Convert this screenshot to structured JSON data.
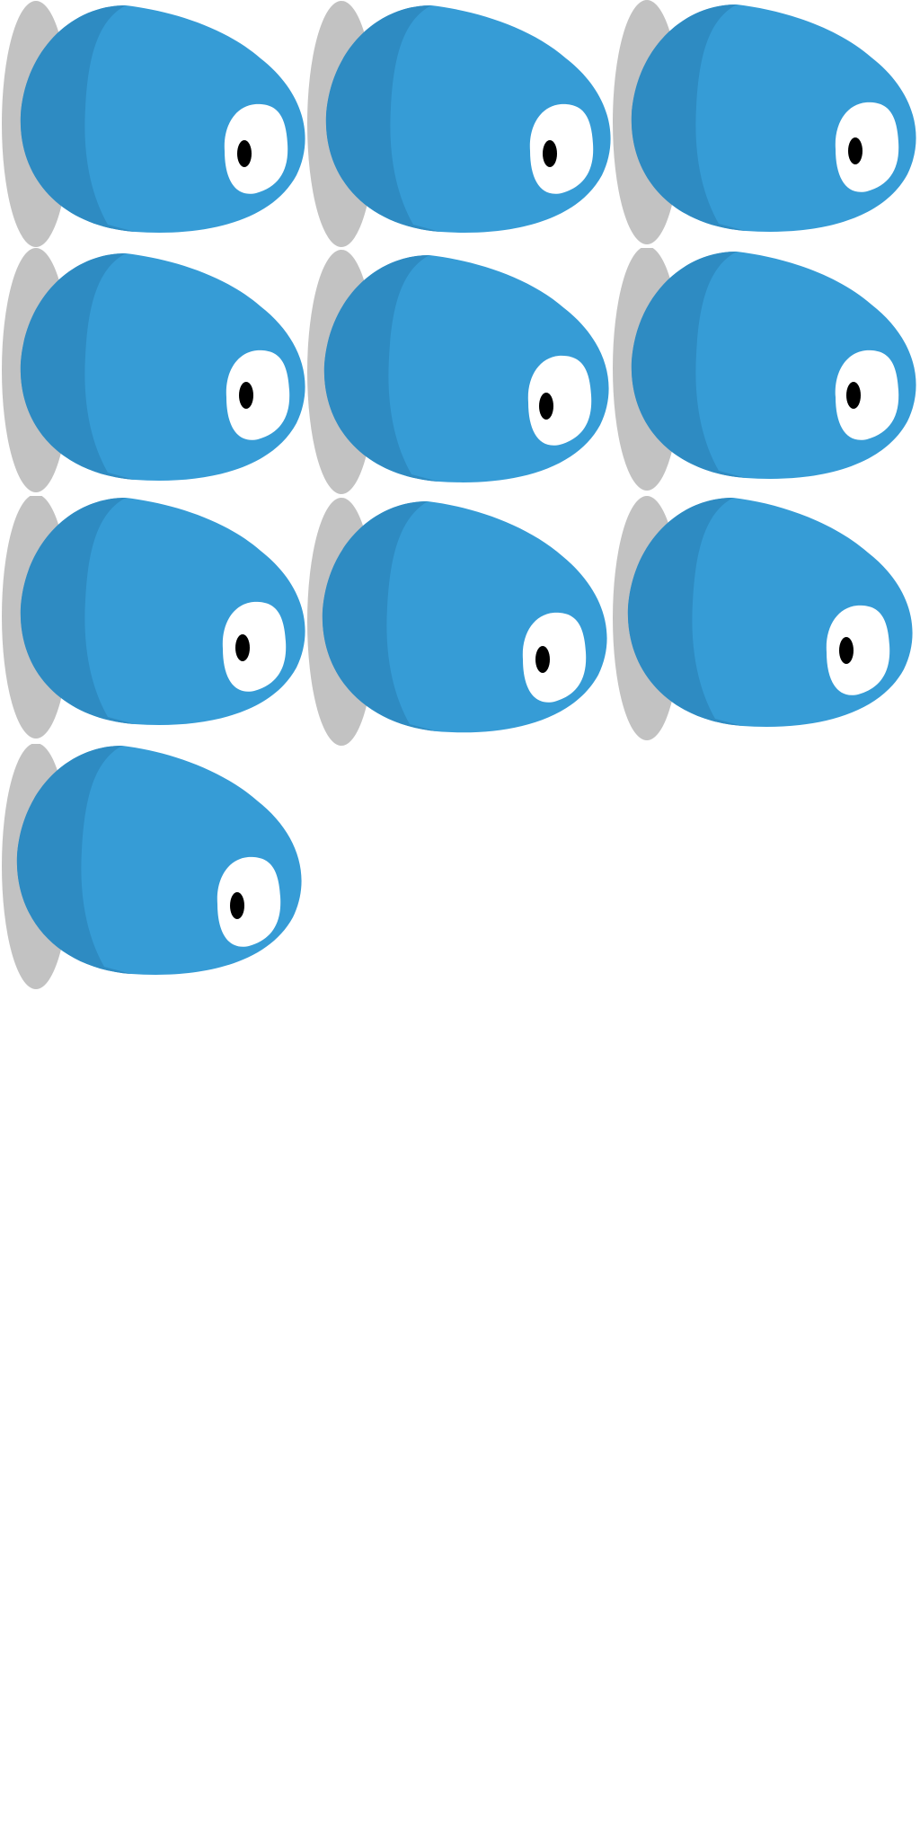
{
  "sprite_sheet": {
    "background_color": "#ffffff",
    "frame_count": 10,
    "colors": {
      "body": "#369cd6",
      "body_shade": "#2e8bc2",
      "disc": "#c2c2c2",
      "eye_white": "#ffffff",
      "pupil": "#000000"
    },
    "frames": [
      {
        "sprite": "blue-blob-with-gray-disc"
      },
      {
        "sprite": "blue-blob-with-gray-disc"
      },
      {
        "sprite": "blue-blob-with-gray-disc"
      },
      {
        "sprite": "blue-blob-with-gray-disc"
      },
      {
        "sprite": "blue-blob-with-gray-disc"
      },
      {
        "sprite": "blue-blob-with-gray-disc"
      },
      {
        "sprite": "blue-blob-with-gray-disc"
      },
      {
        "sprite": "blue-blob-with-gray-disc"
      },
      {
        "sprite": "blue-blob-with-gray-disc"
      },
      {
        "sprite": "blue-blob-with-gray-disc"
      }
    ]
  }
}
